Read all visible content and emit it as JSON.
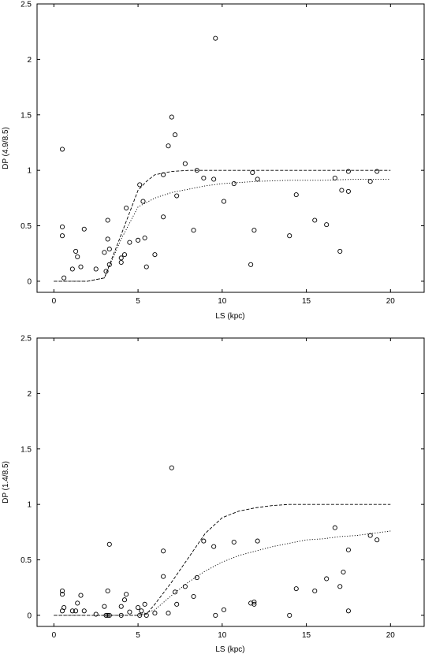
{
  "chart_data": [
    {
      "type": "scatter",
      "xlabel": "LS (kpc)",
      "ylabel": "DP (4.9/8.5)",
      "xlim": [
        -1,
        22
      ],
      "ylim": [
        -0.1,
        2.5
      ],
      "xticks": [
        0,
        5,
        10,
        15,
        20
      ],
      "yticks": [
        0,
        0.5,
        1,
        1.5,
        2,
        2.5
      ],
      "grid": false,
      "points": [
        [
          0.5,
          1.19
        ],
        [
          0.5,
          0.49
        ],
        [
          0.5,
          0.41
        ],
        [
          0.6,
          0.03
        ],
        [
          1.1,
          0.11
        ],
        [
          1.3,
          0.27
        ],
        [
          1.4,
          0.22
        ],
        [
          1.6,
          0.13
        ],
        [
          1.8,
          0.47
        ],
        [
          2.5,
          0.11
        ],
        [
          3.0,
          0.26
        ],
        [
          3.1,
          0.09
        ],
        [
          3.2,
          0.38
        ],
        [
          3.2,
          0.55
        ],
        [
          3.3,
          0.29
        ],
        [
          3.3,
          0.15
        ],
        [
          4.0,
          0.21
        ],
        [
          4.0,
          0.17
        ],
        [
          4.2,
          0.24
        ],
        [
          4.3,
          0.66
        ],
        [
          4.5,
          0.35
        ],
        [
          5.0,
          0.37
        ],
        [
          5.1,
          0.87
        ],
        [
          5.3,
          0.72
        ],
        [
          5.4,
          0.39
        ],
        [
          5.5,
          0.13
        ],
        [
          6.0,
          0.24
        ],
        [
          6.5,
          0.96
        ],
        [
          6.5,
          0.58
        ],
        [
          6.8,
          1.22
        ],
        [
          7.0,
          1.48
        ],
        [
          7.2,
          1.32
        ],
        [
          7.3,
          0.77
        ],
        [
          7.8,
          1.06
        ],
        [
          8.3,
          0.46
        ],
        [
          8.5,
          1.0
        ],
        [
          8.9,
          0.93
        ],
        [
          9.5,
          0.92
        ],
        [
          9.6,
          2.19
        ],
        [
          10.1,
          0.72
        ],
        [
          10.7,
          0.88
        ],
        [
          11.7,
          0.15
        ],
        [
          11.8,
          0.98
        ],
        [
          11.9,
          0.46
        ],
        [
          12.1,
          0.92
        ],
        [
          14.0,
          0.41
        ],
        [
          14.4,
          0.78
        ],
        [
          15.5,
          0.55
        ],
        [
          16.2,
          0.51
        ],
        [
          16.7,
          0.93
        ],
        [
          17.0,
          0.27
        ],
        [
          17.1,
          0.82
        ],
        [
          17.5,
          0.99
        ],
        [
          17.5,
          0.81
        ],
        [
          18.8,
          0.9
        ],
        [
          19.2,
          0.99
        ]
      ],
      "series": [
        {
          "style": "dashed",
          "x": [
            0,
            1,
            2,
            3,
            4,
            5,
            5.5,
            6,
            7,
            8,
            9,
            10,
            12,
            14,
            16,
            18,
            20
          ],
          "y": [
            0,
            0,
            0,
            0.03,
            0.42,
            0.82,
            0.9,
            0.96,
            0.99,
            1.0,
            1.0,
            1.0,
            1.0,
            1.0,
            1.0,
            1.0,
            1.0
          ]
        },
        {
          "style": "dotted",
          "x": [
            0,
            1,
            2,
            3,
            4,
            5,
            6,
            7,
            8,
            9,
            10,
            12,
            14,
            16,
            18,
            20
          ],
          "y": [
            0,
            0,
            0,
            0.03,
            0.38,
            0.67,
            0.75,
            0.8,
            0.83,
            0.86,
            0.88,
            0.9,
            0.91,
            0.91,
            0.92,
            0.92
          ]
        }
      ]
    },
    {
      "type": "scatter",
      "xlabel": "LS (kpc)",
      "ylabel": "DP (1.4/8.5)",
      "xlim": [
        -1,
        22
      ],
      "ylim": [
        -0.1,
        2.5
      ],
      "xticks": [
        0,
        5,
        10,
        15,
        20
      ],
      "yticks": [
        0,
        0.5,
        1,
        1.5,
        2,
        2.5
      ],
      "grid": false,
      "points": [
        [
          0.5,
          0.22
        ],
        [
          0.5,
          0.19
        ],
        [
          0.5,
          0.04
        ],
        [
          0.6,
          0.07
        ],
        [
          1.1,
          0.04
        ],
        [
          1.3,
          0.04
        ],
        [
          1.4,
          0.11
        ],
        [
          1.6,
          0.18
        ],
        [
          1.8,
          0.04
        ],
        [
          2.5,
          0.01
        ],
        [
          3.0,
          0.08
        ],
        [
          3.1,
          0.0
        ],
        [
          3.2,
          0.22
        ],
        [
          3.2,
          0.0
        ],
        [
          3.3,
          0.64
        ],
        [
          3.3,
          0.0
        ],
        [
          4.0,
          0.0
        ],
        [
          4.0,
          0.08
        ],
        [
          4.2,
          0.14
        ],
        [
          4.3,
          0.19
        ],
        [
          4.5,
          0.03
        ],
        [
          5.0,
          0.07
        ],
        [
          5.1,
          0.0
        ],
        [
          5.2,
          0.04
        ],
        [
          5.4,
          0.1
        ],
        [
          5.5,
          0.0
        ],
        [
          6.0,
          0.02
        ],
        [
          6.5,
          0.58
        ],
        [
          6.5,
          0.35
        ],
        [
          6.8,
          0.02
        ],
        [
          7.0,
          1.33
        ],
        [
          7.2,
          0.21
        ],
        [
          7.3,
          0.1
        ],
        [
          7.8,
          0.26
        ],
        [
          8.3,
          0.17
        ],
        [
          8.5,
          0.34
        ],
        [
          8.9,
          0.67
        ],
        [
          9.5,
          0.62
        ],
        [
          9.6,
          0.0
        ],
        [
          10.1,
          0.05
        ],
        [
          10.7,
          0.66
        ],
        [
          11.7,
          0.11
        ],
        [
          11.9,
          0.1
        ],
        [
          11.9,
          0.12
        ],
        [
          12.1,
          0.67
        ],
        [
          14.0,
          0.0
        ],
        [
          14.4,
          0.24
        ],
        [
          15.5,
          0.22
        ],
        [
          16.2,
          0.33
        ],
        [
          16.7,
          0.79
        ],
        [
          17.0,
          0.26
        ],
        [
          17.2,
          0.39
        ],
        [
          17.5,
          0.59
        ],
        [
          17.5,
          0.04
        ],
        [
          18.8,
          0.72
        ],
        [
          19.2,
          0.68
        ]
      ],
      "series": [
        {
          "style": "dashed",
          "x": [
            0,
            1,
            2,
            3,
            4,
            5,
            5.5,
            6,
            7,
            8,
            9,
            10,
            11,
            12,
            13,
            14,
            15,
            16,
            18,
            20
          ],
          "y": [
            0,
            0,
            0,
            0,
            0,
            0.0,
            0.01,
            0.1,
            0.3,
            0.52,
            0.74,
            0.88,
            0.94,
            0.97,
            0.99,
            1.0,
            1.0,
            1.0,
            1.0,
            1.0
          ]
        },
        {
          "style": "dotted",
          "x": [
            0,
            1,
            2,
            3,
            4,
            5,
            6,
            7,
            8,
            9,
            10,
            11,
            12,
            13,
            14,
            15,
            16,
            17,
            18,
            19,
            20
          ],
          "y": [
            0,
            0,
            0,
            0,
            0,
            0.0,
            0.05,
            0.18,
            0.3,
            0.4,
            0.48,
            0.54,
            0.58,
            0.62,
            0.65,
            0.68,
            0.69,
            0.71,
            0.72,
            0.74,
            0.76
          ]
        }
      ]
    }
  ]
}
